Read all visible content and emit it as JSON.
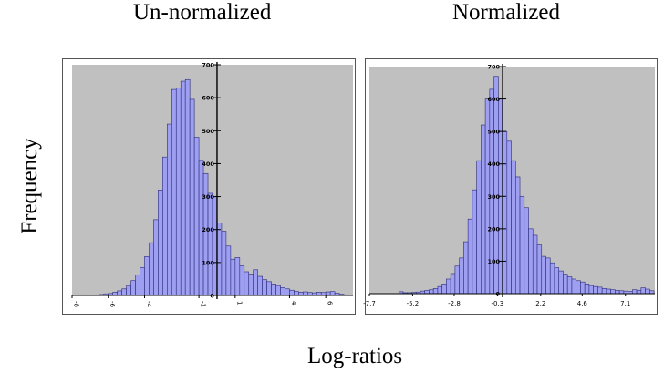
{
  "figure": {
    "titles": [
      "Un-normalized",
      "Normalized"
    ],
    "ylabel": "Frequency",
    "xlabel": "Log-ratios"
  },
  "colors": {
    "plot_bg": "#c0c0c0",
    "bar_fill": "#9f9ff2",
    "bar_stroke": "#2b2b7a",
    "axis": "#000000"
  },
  "chart_data": [
    {
      "type": "bar",
      "title": "Un-normalized",
      "xlabel": "Log-ratios",
      "ylabel": "Frequency",
      "xlim": [
        -8,
        7.5
      ],
      "ylim": [
        0,
        700
      ],
      "bin_width": 0.25,
      "y_ticks": [
        0,
        100,
        200,
        300,
        400,
        500,
        600,
        700
      ],
      "x_ticks": [
        -8,
        -6,
        -4,
        -1,
        1,
        4,
        6
      ],
      "x_tick_labels": [
        "-8",
        "-6",
        "-4",
        "-1",
        "1",
        "4",
        "6"
      ],
      "bins_start": [
        -8.0,
        -7.75,
        -7.5,
        -7.25,
        -7.0,
        -6.75,
        -6.5,
        -6.25,
        -6.0,
        -5.75,
        -5.5,
        -5.25,
        -5.0,
        -4.75,
        -4.5,
        -4.25,
        -4.0,
        -3.75,
        -3.5,
        -3.25,
        -3.0,
        -2.75,
        -2.5,
        -2.25,
        -2.0,
        -1.75,
        -1.5,
        -1.25,
        -1.0,
        -0.75,
        -0.5,
        -0.25,
        0.0,
        0.25,
        0.5,
        0.75,
        1.0,
        1.25,
        1.5,
        1.75,
        2.0,
        2.25,
        2.5,
        2.75,
        3.0,
        3.25,
        3.5,
        3.75,
        4.0,
        4.25,
        4.5,
        4.75,
        5.0,
        5.25,
        5.5,
        5.75,
        6.0,
        6.25,
        6.5,
        6.75,
        7.0
      ],
      "values": [
        1,
        0,
        2,
        0,
        1,
        2,
        3,
        5,
        6,
        10,
        14,
        20,
        30,
        45,
        62,
        85,
        118,
        160,
        230,
        320,
        420,
        520,
        625,
        630,
        650,
        655,
        595,
        480,
        410,
        370,
        310,
        300,
        220,
        195,
        150,
        110,
        115,
        90,
        72,
        65,
        78,
        58,
        48,
        42,
        35,
        30,
        24,
        20,
        16,
        12,
        10,
        11,
        9,
        8,
        10,
        9,
        11,
        12,
        7,
        4,
        2
      ]
    },
    {
      "type": "bar",
      "title": "Normalized",
      "xlabel": "Log-ratios",
      "ylabel": "Frequency",
      "xlim": [
        -7.7,
        8.8
      ],
      "ylim": [
        0,
        700
      ],
      "bin_width": 0.25,
      "y_ticks": [
        0,
        100,
        200,
        300,
        400,
        500,
        600,
        700
      ],
      "x_ticks": [
        -7.7,
        -5.2,
        -2.8,
        -0.3,
        2.2,
        4.6,
        7.1
      ],
      "x_tick_labels": [
        "-7.7",
        "-5.2",
        "-2.8",
        "-0.3",
        "2.2",
        "4.6",
        "7.1"
      ],
      "bins_start": [
        -6.0,
        -5.75,
        -5.5,
        -5.25,
        -5.0,
        -4.75,
        -4.5,
        -4.25,
        -4.0,
        -3.75,
        -3.5,
        -3.25,
        -3.0,
        -2.75,
        -2.5,
        -2.25,
        -2.0,
        -1.75,
        -1.5,
        -1.25,
        -1.0,
        -0.75,
        -0.5,
        -0.25,
        0.0,
        0.25,
        0.5,
        0.75,
        1.0,
        1.25,
        1.5,
        1.75,
        2.0,
        2.25,
        2.5,
        2.75,
        3.0,
        3.25,
        3.5,
        3.75,
        4.0,
        4.25,
        4.5,
        4.75,
        5.0,
        5.25,
        5.5,
        5.75,
        6.0,
        6.25,
        6.5,
        6.75,
        7.0,
        7.25,
        7.5,
        7.75,
        8.0,
        8.25,
        8.5
      ],
      "values": [
        6,
        3,
        3,
        4,
        5,
        8,
        10,
        12,
        16,
        22,
        30,
        45,
        62,
        85,
        110,
        160,
        230,
        320,
        410,
        520,
        600,
        630,
        670,
        600,
        500,
        470,
        410,
        360,
        300,
        265,
        200,
        180,
        150,
        115,
        110,
        95,
        80,
        70,
        60,
        52,
        45,
        40,
        36,
        30,
        25,
        22,
        20,
        16,
        14,
        12,
        10,
        9,
        8,
        7,
        12,
        10,
        18,
        14,
        9
      ]
    }
  ]
}
